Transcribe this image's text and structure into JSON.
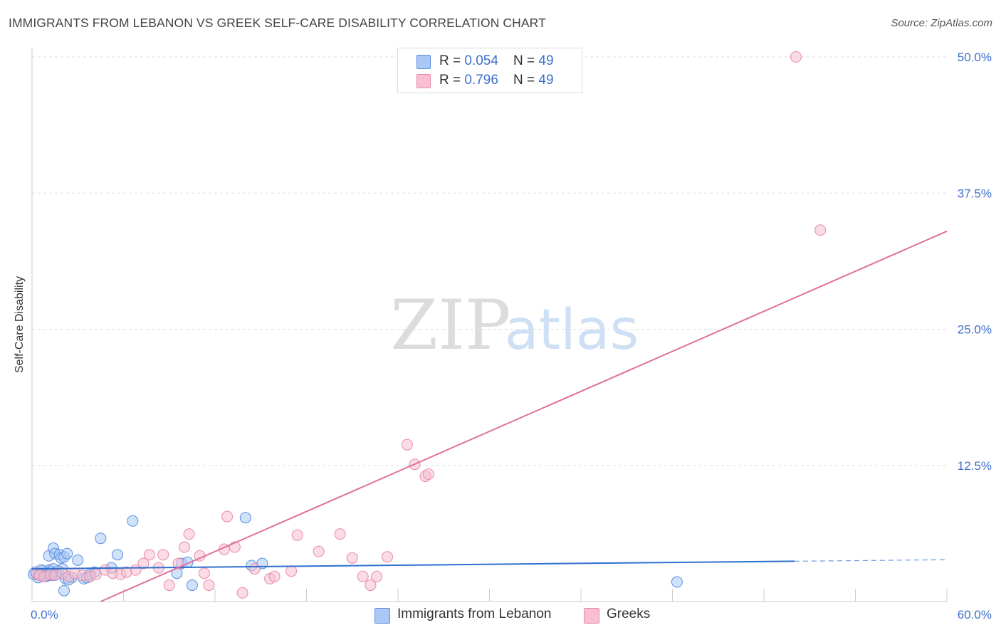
{
  "title": "IMMIGRANTS FROM LEBANON VS GREEK SELF-CARE DISABILITY CORRELATION CHART",
  "source": "Source: ZipAtlas.com",
  "watermark": {
    "zip": "ZIP",
    "atlas": "atlas"
  },
  "legend": {
    "rows": [
      {
        "r_label": "R = ",
        "r_value": "0.054",
        "n_label": "N = ",
        "n_value": "49",
        "fill": "#a9c8f5",
        "stroke": "#5b8fe0"
      },
      {
        "r_label": "R = ",
        "r_value": "0.796",
        "n_label": "N = ",
        "n_value": "49",
        "fill": "#f8bfd0",
        "stroke": "#e889a8"
      }
    ]
  },
  "colors": {
    "blue_line": "#2e6fcf",
    "pink_line": "#e0709a",
    "tick_text": "#3d6fcc",
    "grid": "#dddddd"
  },
  "chart_data": {
    "type": "scatter",
    "xlabel": "",
    "ylabel": "Self-Care Disability",
    "xlim": [
      0,
      60
    ],
    "ylim": [
      0,
      50
    ],
    "x_tick_labels": [
      {
        "x": 0,
        "label": "0.0%"
      },
      {
        "x": 60,
        "label": "60.0%"
      }
    ],
    "y_tick_labels": [
      {
        "y": 12.5,
        "label": "12.5%"
      },
      {
        "y": 25.0,
        "label": "25.0%"
      },
      {
        "y": 37.5,
        "label": "37.5%"
      },
      {
        "y": 50.0,
        "label": "50.0%"
      }
    ],
    "grid": true,
    "legend_position": "top-center",
    "series": [
      {
        "name": "Immigrants from Lebanon",
        "color": "#5b8fe0",
        "fill": "#a9c8f5",
        "trend": {
          "x": [
            0,
            50
          ],
          "y": [
            3.0,
            3.7
          ],
          "dashed_to": 60
        },
        "points": [
          [
            0.2,
            2.7
          ],
          [
            0.3,
            2.5
          ],
          [
            0.5,
            2.6
          ],
          [
            0.6,
            2.4
          ],
          [
            0.7,
            2.8
          ],
          [
            0.8,
            2.6
          ],
          [
            0.9,
            2.5
          ],
          [
            1.0,
            2.7
          ],
          [
            1.1,
            2.9
          ],
          [
            1.2,
            2.8
          ],
          [
            1.3,
            2.6
          ],
          [
            1.4,
            3.0
          ],
          [
            1.1,
            4.2
          ],
          [
            1.4,
            4.9
          ],
          [
            1.5,
            4.4
          ],
          [
            1.8,
            4.3
          ],
          [
            1.9,
            4.0
          ],
          [
            2.1,
            4.1
          ],
          [
            2.3,
            4.4
          ],
          [
            2.0,
            3.0
          ],
          [
            1.7,
            2.8
          ],
          [
            2.2,
            2.1
          ],
          [
            2.1,
            1.0
          ],
          [
            3.0,
            3.8
          ],
          [
            3.4,
            2.1
          ],
          [
            3.6,
            2.2
          ],
          [
            4.1,
            2.7
          ],
          [
            4.5,
            5.8
          ],
          [
            5.2,
            3.1
          ],
          [
            5.6,
            4.3
          ],
          [
            6.6,
            7.4
          ],
          [
            9.5,
            2.6
          ],
          [
            9.8,
            3.5
          ],
          [
            10.2,
            3.6
          ],
          [
            10.5,
            1.5
          ],
          [
            14.0,
            7.7
          ],
          [
            14.4,
            3.3
          ],
          [
            15.1,
            3.5
          ],
          [
            42.3,
            1.8
          ],
          [
            0.4,
            2.2
          ],
          [
            0.9,
            2.3
          ],
          [
            1.6,
            2.5
          ],
          [
            2.6,
            2.2
          ],
          [
            0.1,
            2.5
          ],
          [
            1.3,
            2.4
          ],
          [
            0.6,
            2.9
          ],
          [
            3.8,
            2.5
          ],
          [
            2.4,
            2.0
          ],
          [
            1.0,
            2.4
          ]
        ]
      },
      {
        "name": "Greeks",
        "color": "#e889a8",
        "fill": "#f8bfd0",
        "trend": {
          "x": [
            4.5,
            60
          ],
          "y": [
            0,
            34.0
          ]
        },
        "points": [
          [
            0.3,
            2.6
          ],
          [
            0.5,
            2.4
          ],
          [
            0.8,
            2.3
          ],
          [
            1.2,
            2.5
          ],
          [
            1.5,
            2.4
          ],
          [
            2.0,
            2.6
          ],
          [
            2.4,
            2.3
          ],
          [
            2.8,
            2.6
          ],
          [
            3.3,
            2.4
          ],
          [
            3.8,
            2.3
          ],
          [
            4.2,
            2.5
          ],
          [
            4.8,
            2.9
          ],
          [
            5.3,
            2.6
          ],
          [
            5.8,
            2.5
          ],
          [
            6.2,
            2.7
          ],
          [
            6.8,
            2.9
          ],
          [
            7.3,
            3.5
          ],
          [
            7.7,
            4.3
          ],
          [
            8.3,
            3.1
          ],
          [
            8.6,
            4.3
          ],
          [
            9.0,
            1.5
          ],
          [
            9.6,
            3.5
          ],
          [
            10.0,
            5.0
          ],
          [
            10.3,
            6.2
          ],
          [
            11.0,
            4.2
          ],
          [
            11.3,
            2.6
          ],
          [
            11.6,
            1.5
          ],
          [
            12.6,
            4.8
          ],
          [
            12.8,
            7.8
          ],
          [
            13.3,
            5.0
          ],
          [
            13.8,
            0.8
          ],
          [
            14.6,
            3.0
          ],
          [
            15.6,
            2.1
          ],
          [
            15.9,
            2.3
          ],
          [
            17.0,
            2.8
          ],
          [
            17.4,
            6.1
          ],
          [
            18.8,
            4.6
          ],
          [
            20.2,
            6.2
          ],
          [
            21.0,
            4.0
          ],
          [
            21.7,
            2.3
          ],
          [
            22.2,
            1.5
          ],
          [
            22.6,
            2.3
          ],
          [
            23.3,
            4.1
          ],
          [
            24.6,
            14.4
          ],
          [
            25.1,
            12.6
          ],
          [
            25.8,
            11.5
          ],
          [
            26.0,
            11.7
          ],
          [
            50.1,
            50.0
          ],
          [
            51.7,
            34.1
          ]
        ]
      }
    ]
  }
}
